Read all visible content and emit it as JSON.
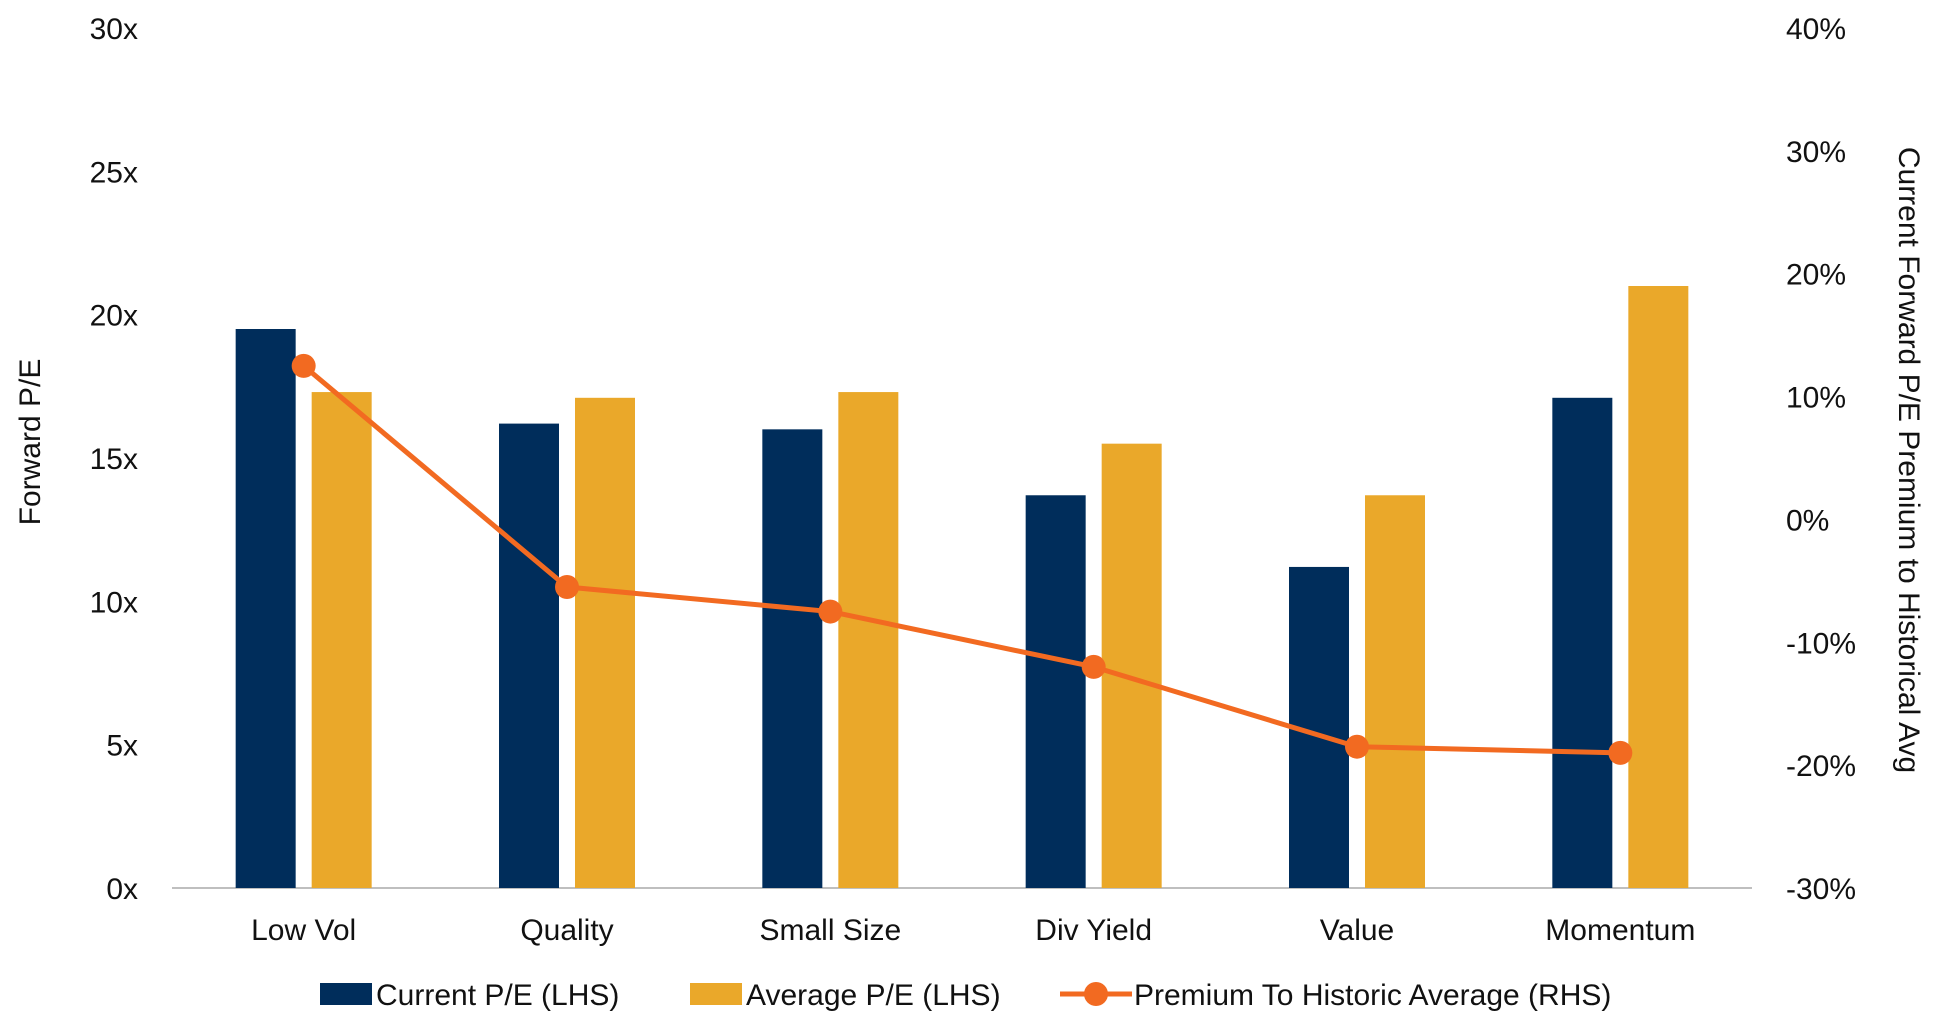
{
  "chart_data": {
    "type": "bar",
    "categories": [
      "Low Vol",
      "Quality",
      "Small Size",
      "Div Yield",
      "Value",
      "Momentum"
    ],
    "series": [
      {
        "name": "Current P/E (LHS)",
        "type": "bar",
        "axis": "left",
        "color": "#002d5b",
        "values": [
          19.5,
          16.2,
          16.0,
          13.7,
          11.2,
          17.1
        ]
      },
      {
        "name": "Average P/E (LHS)",
        "type": "bar",
        "axis": "left",
        "color": "#eaa82a",
        "values": [
          17.3,
          17.1,
          17.3,
          15.5,
          13.7,
          21.0
        ]
      },
      {
        "name": "Premium To Historic Average (RHS)",
        "type": "line",
        "axis": "right",
        "color": "#f26a21",
        "values": [
          12.5,
          -5.5,
          -7.5,
          -12.0,
          -18.5,
          -19.0
        ]
      }
    ],
    "ylabel": "Forward P/E",
    "ylabel_right": "Current Forward P/E Premium to Historical Avg",
    "ylim": [
      0,
      30
    ],
    "ylim_right": [
      -30,
      40
    ],
    "yticks": [
      {
        "v": 0,
        "label": "0x"
      },
      {
        "v": 5,
        "label": "5x"
      },
      {
        "v": 10,
        "label": "10x"
      },
      {
        "v": 15,
        "label": "15x"
      },
      {
        "v": 20,
        "label": "20x"
      },
      {
        "v": 25,
        "label": "25x"
      },
      {
        "v": 30,
        "label": "30x"
      }
    ],
    "yticks_right": [
      {
        "v": -30,
        "label": "-30%"
      },
      {
        "v": -20,
        "label": "-20%"
      },
      {
        "v": -10,
        "label": "-10%"
      },
      {
        "v": 0,
        "label": "0%"
      },
      {
        "v": 10,
        "label": "10%"
      },
      {
        "v": 20,
        "label": "20%"
      },
      {
        "v": 30,
        "label": "30%"
      },
      {
        "v": 40,
        "label": "40%"
      }
    ],
    "legend_position": "bottom",
    "grid": false
  }
}
